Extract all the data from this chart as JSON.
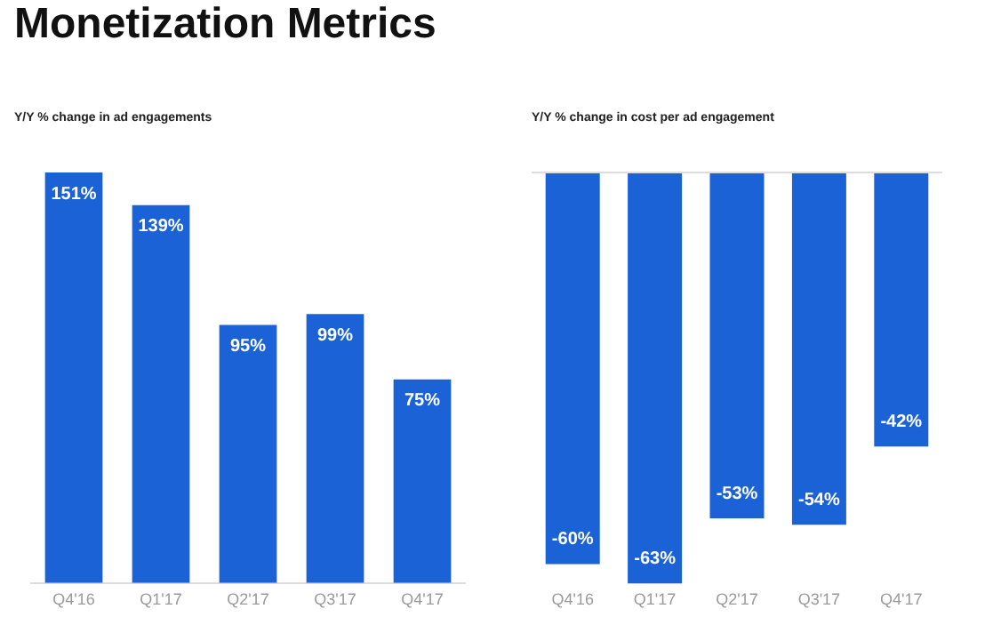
{
  "chart_data": [
    {
      "type": "bar",
      "title": "Monetization Metrics",
      "subtitle": "Y/Y % change in ad engagements",
      "categories": [
        "Q4'16",
        "Q1'17",
        "Q2'17",
        "Q3'17",
        "Q4'17"
      ],
      "values": [
        151,
        139,
        95,
        99,
        75
      ],
      "color": "#1a62d6",
      "value_labels": [
        "151%",
        "139%",
        "95%",
        "99%",
        "75%"
      ],
      "grid": false
    },
    {
      "type": "bar",
      "subtitle": "Y/Y % change in cost per ad engagement",
      "categories": [
        "Q4'16",
        "Q1'17",
        "Q2'17",
        "Q3'17",
        "Q4'17"
      ],
      "values": [
        -60,
        -63,
        -53,
        -54,
        -42
      ],
      "color": "#1a62d6",
      "value_labels": [
        "-60%",
        "-63%",
        "-53%",
        "-54%",
        "-42%"
      ],
      "grid": false
    }
  ]
}
